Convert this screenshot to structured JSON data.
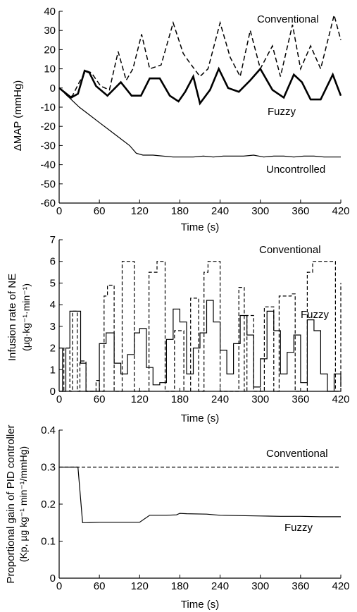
{
  "chart_data": [
    {
      "type": "line",
      "ylabel": "ΔMAP (mmHg)",
      "xlabel": "Time (s)",
      "xlim": [
        0,
        420
      ],
      "ylim": [
        -60,
        40
      ],
      "xticks": [
        0,
        60,
        120,
        180,
        240,
        300,
        360,
        420
      ],
      "yticks": [
        40,
        30,
        20,
        10,
        0,
        -10,
        -20,
        -30,
        -40,
        -50,
        -60
      ],
      "annotations": {
        "conventional": "Conventional",
        "fuzzy": "Fuzzy",
        "uncontrolled": "Uncontrolled"
      },
      "series": [
        {
          "name": "Conventional",
          "style": "dashed",
          "x": [
            0,
            15,
            20,
            30,
            40,
            48,
            62,
            75,
            88,
            100,
            110,
            123,
            135,
            152,
            170,
            185,
            195,
            210,
            222,
            240,
            255,
            270,
            285,
            300,
            318,
            330,
            348,
            360,
            375,
            390,
            410,
            420
          ],
          "y": [
            0,
            -5,
            -4,
            3,
            9,
            8,
            1,
            -1,
            19,
            4,
            10,
            28,
            10,
            12,
            34,
            18,
            13,
            6,
            10,
            34,
            16,
            6,
            30,
            10,
            22,
            6,
            33,
            10,
            22,
            10,
            38,
            25
          ]
        },
        {
          "name": "Fuzzy",
          "style": "solid",
          "x": [
            0,
            18,
            28,
            38,
            45,
            55,
            72,
            92,
            108,
            122,
            135,
            150,
            165,
            178,
            188,
            200,
            210,
            225,
            238,
            252,
            268,
            285,
            300,
            318,
            335,
            350,
            362,
            375,
            390,
            408,
            420
          ],
          "y": [
            0,
            -5,
            -3,
            9,
            8,
            1,
            -4,
            3,
            -4,
            -4,
            5,
            5,
            -4,
            -7,
            -2,
            6,
            -8,
            -1,
            10,
            0,
            -2,
            4,
            10,
            -1,
            -5,
            7,
            3,
            -6,
            -6,
            7,
            -4
          ]
        },
        {
          "name": "Uncontrolled",
          "style": "solid-thin",
          "x": [
            0,
            15,
            30,
            45,
            60,
            75,
            90,
            105,
            115,
            125,
            140,
            155,
            170,
            185,
            200,
            215,
            230,
            245,
            260,
            275,
            290,
            305,
            320,
            335,
            350,
            365,
            380,
            395,
            410,
            420
          ],
          "y": [
            0,
            -5,
            -10,
            -14,
            -18,
            -22,
            -26,
            -30,
            -34,
            -35,
            -35,
            -35.5,
            -36,
            -36,
            -36,
            -35.5,
            -36,
            -35.5,
            -35.5,
            -35.5,
            -35,
            -36,
            -35.5,
            -35.5,
            -36,
            -35.5,
            -35.5,
            -36,
            -36,
            -36
          ]
        }
      ]
    },
    {
      "type": "line",
      "ylabel_line1": "Infusion rate of NE",
      "ylabel_line2": "(µg·kg⁻¹·min⁻¹)",
      "xlabel": "Time (s)",
      "xlim": [
        0,
        420
      ],
      "ylim": [
        0,
        7
      ],
      "xticks": [
        0,
        60,
        120,
        180,
        240,
        300,
        360,
        420
      ],
      "yticks": [
        7,
        6,
        5,
        4,
        3,
        2,
        1,
        0
      ],
      "annotations": {
        "conventional": "Conventional",
        "fuzzy": "Fuzzy"
      },
      "series": [
        {
          "name": "Conventional",
          "style": "dashed-step",
          "x": [
            0,
            7,
            7,
            16,
            16,
            20,
            20,
            27,
            27,
            31,
            31,
            40,
            40,
            55,
            55,
            60,
            60,
            67,
            67,
            72,
            72,
            82,
            82,
            94,
            94,
            100,
            100,
            112,
            112,
            134,
            134,
            146,
            146,
            152,
            152,
            158,
            158,
            172,
            172,
            186,
            186,
            196,
            196,
            208,
            208,
            216,
            216,
            222,
            222,
            230,
            230,
            240,
            240,
            268,
            268,
            276,
            276,
            280,
            280,
            290,
            290,
            306,
            306,
            320,
            320,
            328,
            328,
            346,
            346,
            352,
            352,
            370,
            370,
            378,
            378,
            390,
            390,
            412,
            412,
            420,
            420
          ],
          "y": [
            0,
            0,
            2.0,
            2.0,
            0,
            0,
            3.7,
            3.7,
            0,
            0,
            1.4,
            1.4,
            0,
            0,
            0.5,
            0.5,
            0,
            0,
            4.4,
            4.4,
            4.9,
            4.9,
            0,
            0,
            6.0,
            6.0,
            6.0,
            6.0,
            0,
            0,
            5.5,
            5.5,
            6.0,
            6.0,
            6.0,
            6.0,
            0,
            0,
            2.8,
            2.8,
            0,
            0,
            4.3,
            4.3,
            0,
            0,
            5.5,
            5.5,
            6.0,
            6.0,
            6.0,
            6.0,
            0,
            0,
            4.8,
            4.8,
            0,
            0,
            3.5,
            3.5,
            0,
            0,
            3.9,
            3.9,
            0,
            0,
            4.4,
            4.4,
            4.5,
            4.5,
            0,
            0,
            5.5,
            5.5,
            6.0,
            6.0,
            6.0,
            6.0,
            0,
            0,
            5.0
          ]
        },
        {
          "name": "Fuzzy",
          "style": "solid-step",
          "x": [
            0,
            5,
            5,
            10,
            10,
            16,
            16,
            25,
            25,
            32,
            32,
            40,
            40,
            60,
            60,
            70,
            70,
            82,
            82,
            92,
            92,
            102,
            102,
            112,
            112,
            120,
            120,
            130,
            130,
            140,
            140,
            150,
            150,
            160,
            160,
            170,
            170,
            180,
            180,
            190,
            190,
            200,
            200,
            210,
            210,
            220,
            220,
            230,
            230,
            240,
            240,
            250,
            250,
            260,
            260,
            270,
            270,
            280,
            280,
            290,
            290,
            300,
            300,
            310,
            310,
            320,
            320,
            330,
            330,
            340,
            340,
            350,
            350,
            360,
            360,
            370,
            370,
            380,
            380,
            390,
            390,
            400,
            400,
            410,
            410,
            420,
            420
          ],
          "y": [
            2.0,
            2.0,
            0,
            0,
            2.0,
            2.0,
            3.7,
            3.7,
            3.7,
            3.7,
            1.3,
            1.3,
            0,
            0,
            2.2,
            2.2,
            2.7,
            2.7,
            1.3,
            1.3,
            0.8,
            0.8,
            1.7,
            1.7,
            2.7,
            2.7,
            2.9,
            2.9,
            1.1,
            1.1,
            0.3,
            0.3,
            0.4,
            0.4,
            2.4,
            2.4,
            3.8,
            3.8,
            3.2,
            3.2,
            0.8,
            0.8,
            2.0,
            2.0,
            2.7,
            2.7,
            4.2,
            4.2,
            3.2,
            3.2,
            1.9,
            1.9,
            0.8,
            0.8,
            2.2,
            2.2,
            3.5,
            3.5,
            2.6,
            2.6,
            0.2,
            0.2,
            1.5,
            1.5,
            3.7,
            3.7,
            2.8,
            2.8,
            0.8,
            0.8,
            1.8,
            1.8,
            2.6,
            2.6,
            0.4,
            0.4,
            3.3,
            3.3,
            2.8,
            2.8,
            0.8,
            0.8,
            0.0,
            0.0,
            0.8,
            0.8,
            0.2
          ]
        }
      ]
    },
    {
      "type": "line",
      "ylabel_line1": "Proportional gain of PID controller",
      "ylabel_line2": "(Kp, µg kg⁻¹ min⁻¹/mmHg)",
      "xlabel": "Time (s)",
      "xlim": [
        0,
        420
      ],
      "ylim": [
        0,
        0.4
      ],
      "xticks": [
        0,
        60,
        120,
        180,
        240,
        300,
        360,
        420
      ],
      "yticks": [
        "0.4",
        "0.3",
        "0.2",
        "0.1",
        "0"
      ],
      "annotations": {
        "conventional": "Conventional",
        "fuzzy": "Fuzzy"
      },
      "series": [
        {
          "name": "Conventional",
          "style": "dashed",
          "x": [
            0,
            420
          ],
          "y": [
            0.3,
            0.3
          ]
        },
        {
          "name": "Fuzzy",
          "style": "solid",
          "x": [
            0,
            28,
            35,
            40,
            60,
            90,
            120,
            135,
            160,
            175,
            180,
            190,
            220,
            240,
            270,
            300,
            330,
            360,
            390,
            420
          ],
          "y": [
            0.3,
            0.3,
            0.15,
            0.15,
            0.151,
            0.151,
            0.151,
            0.17,
            0.17,
            0.171,
            0.175,
            0.174,
            0.173,
            0.17,
            0.169,
            0.168,
            0.167,
            0.167,
            0.166,
            0.166
          ]
        }
      ]
    }
  ]
}
